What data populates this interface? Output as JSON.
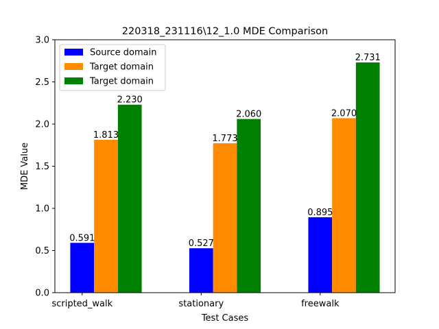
{
  "chart_data": {
    "type": "bar",
    "title": "220318_231116\\12_1.0 MDE Comparison",
    "xlabel": "Test Cases",
    "ylabel": "MDE Value",
    "ylim": [
      0,
      3.0
    ],
    "yticks": [
      "0.0",
      "0.5",
      "1.0",
      "1.5",
      "2.0",
      "2.5",
      "3.0"
    ],
    "categories": [
      "scripted_walk",
      "stationary",
      "freewalk"
    ],
    "legend_position": "upper-left",
    "grid": false,
    "series": [
      {
        "name": "Source domain",
        "color": "#0000ff",
        "values": [
          0.591,
          0.527,
          0.895
        ],
        "labels": [
          "0.591",
          "0.527",
          "0.895"
        ]
      },
      {
        "name": "Target domain",
        "color": "#ff8c00",
        "values": [
          1.813,
          1.773,
          2.07
        ],
        "labels": [
          "1.813",
          "1.773",
          "2.070"
        ]
      },
      {
        "name": "Target domain",
        "color": "#008000",
        "values": [
          2.23,
          2.06,
          2.731
        ],
        "labels": [
          "2.230",
          "2.060",
          "2.731"
        ]
      }
    ]
  }
}
